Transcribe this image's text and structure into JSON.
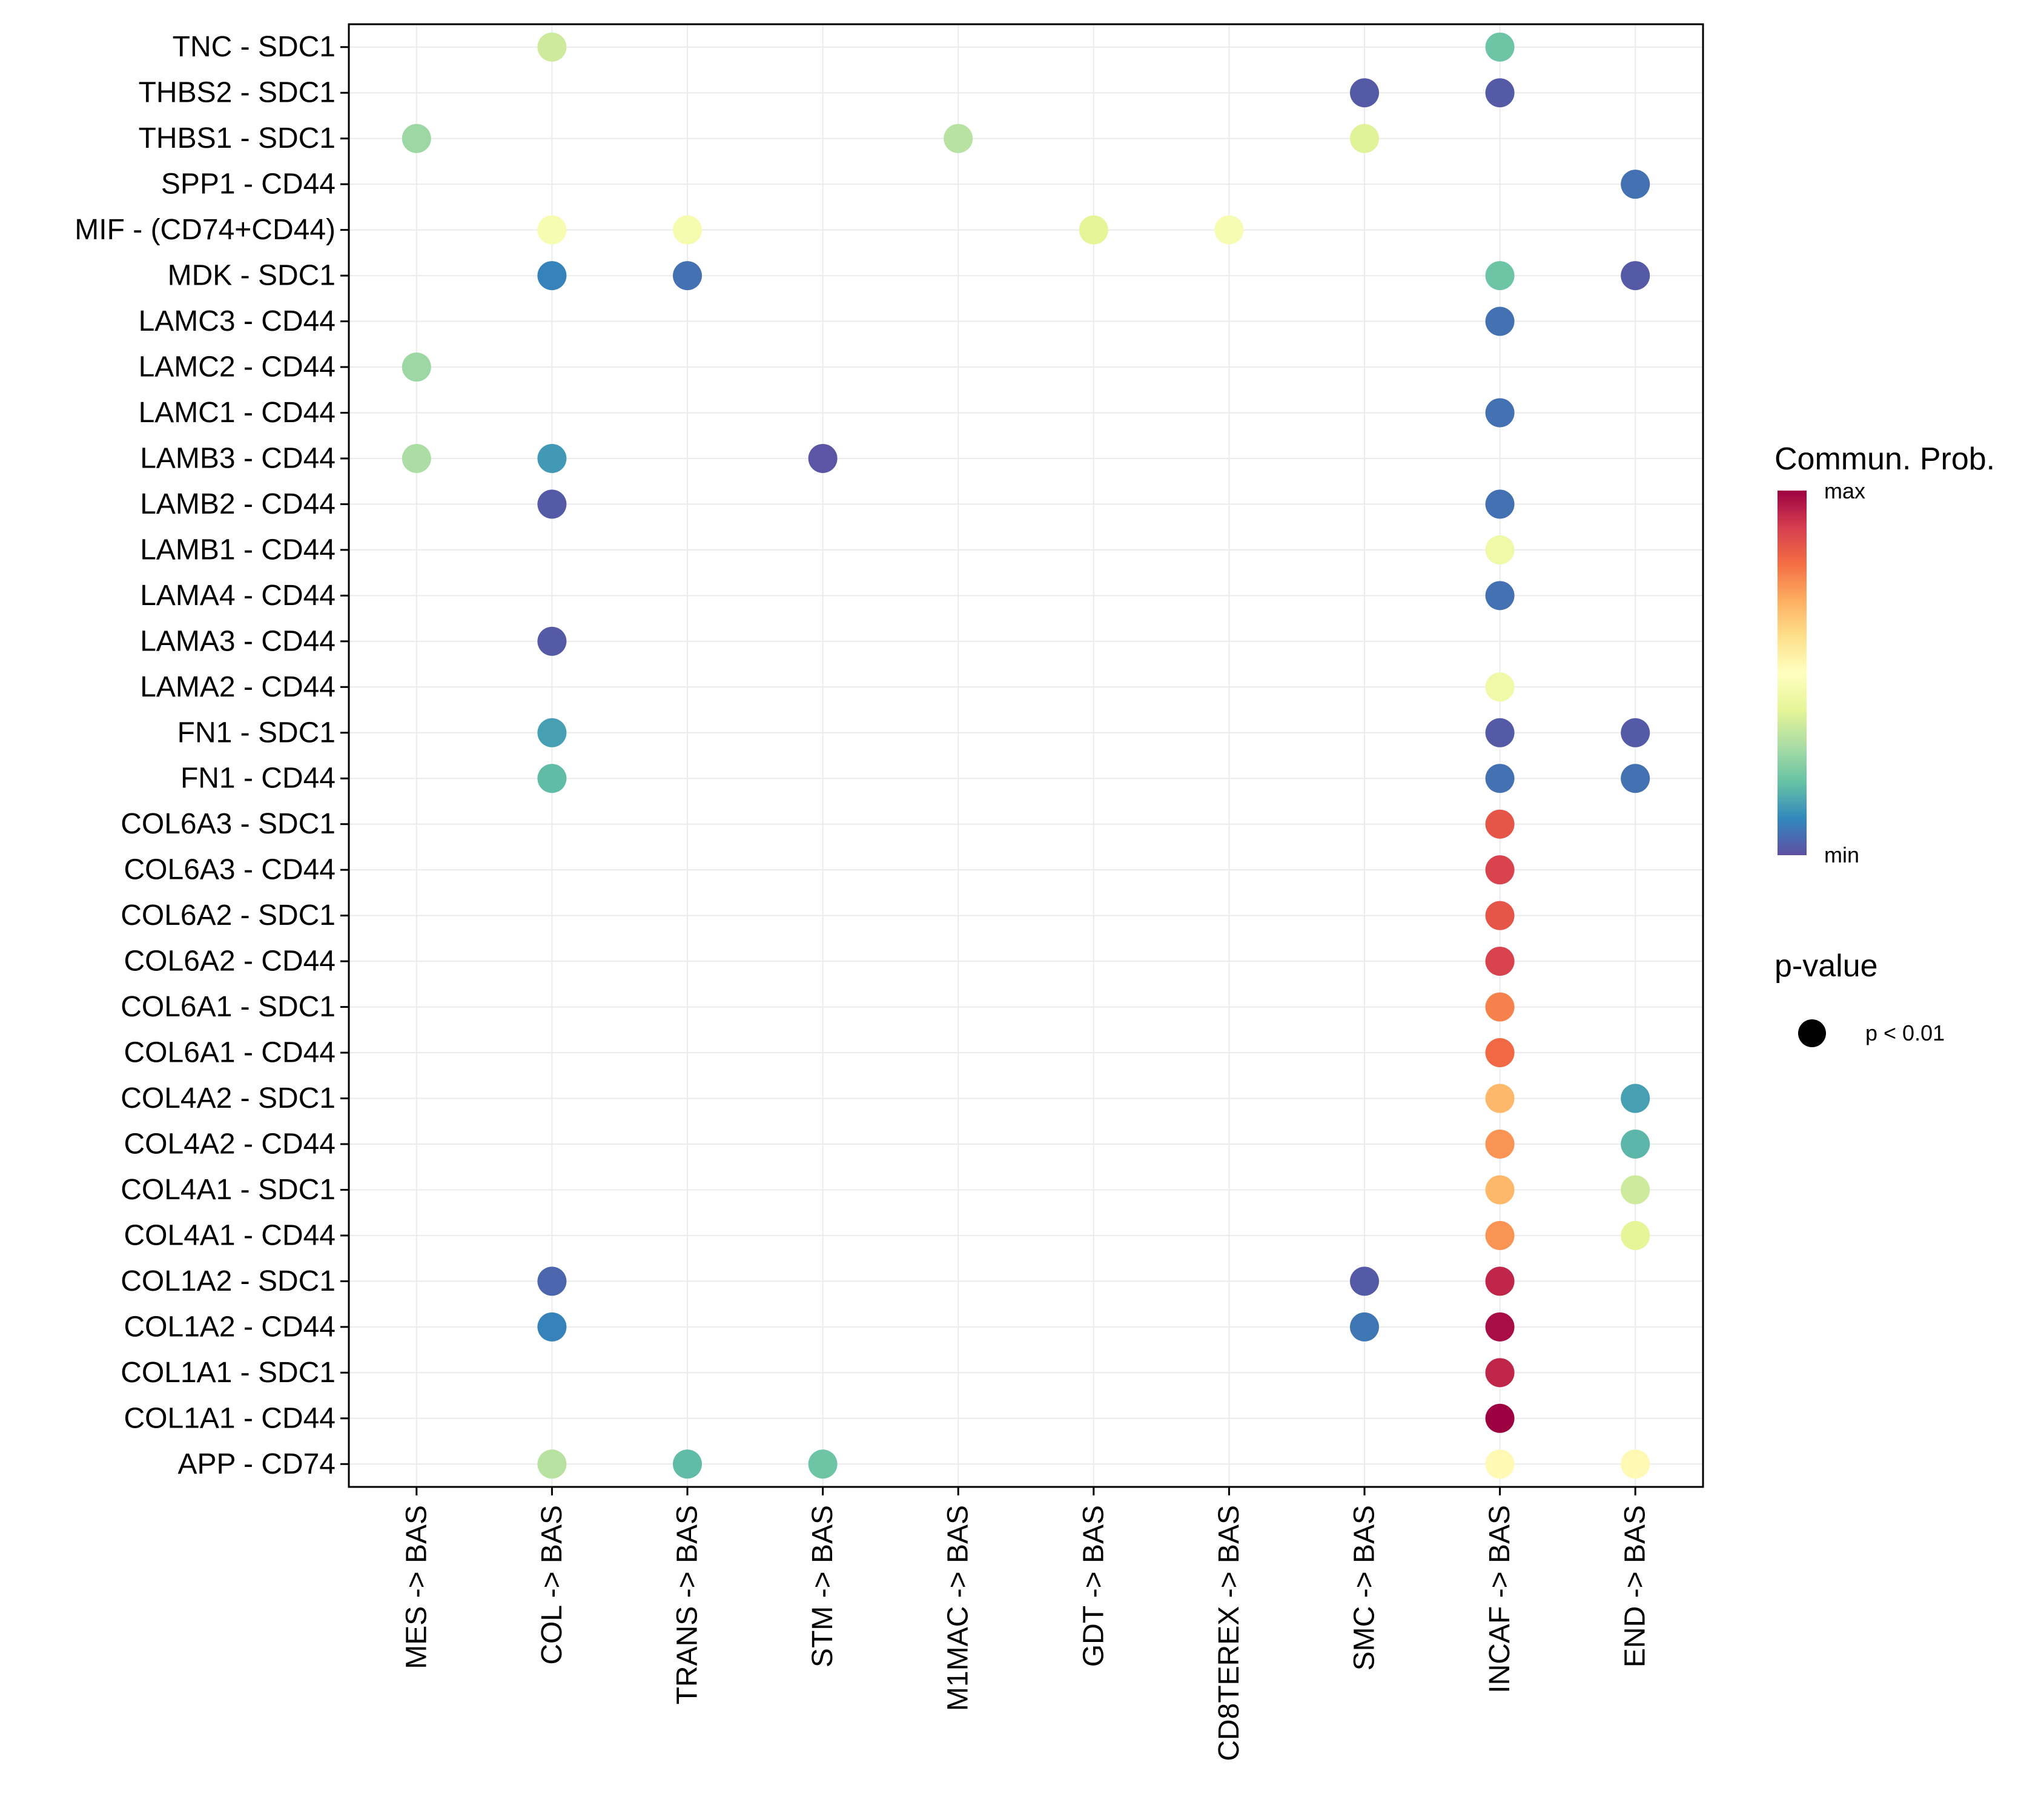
{
  "chart_data": {
    "type": "scatter",
    "subtype": "dot-plot",
    "x_categories": [
      "MES -> BAS",
      "COL -> BAS",
      "TRANS -> BAS",
      "STM -> BAS",
      "M1MAC -> BAS",
      "GDT -> BAS",
      "CD8TEREX -> BAS",
      "SMC -> BAS",
      "INCAF -> BAS",
      "END -> BAS"
    ],
    "y_categories": [
      "TNC - SDC1",
      "THBS2 - SDC1",
      "THBS1 - SDC1",
      "SPP1 - CD44",
      "MIF - (CD74+CD44)",
      "MDK - SDC1",
      "LAMC3 - CD44",
      "LAMC2 - CD44",
      "LAMC1 - CD44",
      "LAMB3 - CD44",
      "LAMB2 - CD44",
      "LAMB1 - CD44",
      "LAMA4 - CD44",
      "LAMA3 - CD44",
      "LAMA2 - CD44",
      "FN1 - SDC1",
      "FN1 - CD44",
      "COL6A3 - SDC1",
      "COL6A3 - CD44",
      "COL6A2 - SDC1",
      "COL6A2 - CD44",
      "COL6A1 - SDC1",
      "COL6A1 - CD44",
      "COL4A2 - SDC1",
      "COL4A2 - CD44",
      "COL4A1 - SDC1",
      "COL4A1 - CD44",
      "COL1A2 - SDC1",
      "COL1A2 - CD44",
      "COL1A1 - SDC1",
      "COL1A1 - CD44",
      "APP - CD74"
    ],
    "points": [
      {
        "y": "TNC - SDC1",
        "x": "COL -> BAS",
        "prob": 0.36
      },
      {
        "y": "TNC - SDC1",
        "x": "INCAF -> BAS",
        "prob": 0.21
      },
      {
        "y": "THBS2 - SDC1",
        "x": "SMC -> BAS",
        "prob": 0.02
      },
      {
        "y": "THBS2 - SDC1",
        "x": "INCAF -> BAS",
        "prob": 0.02
      },
      {
        "y": "THBS1 - SDC1",
        "x": "MES -> BAS",
        "prob": 0.28
      },
      {
        "y": "THBS1 - SDC1",
        "x": "M1MAC -> BAS",
        "prob": 0.32
      },
      {
        "y": "THBS1 - SDC1",
        "x": "SMC -> BAS",
        "prob": 0.39
      },
      {
        "y": "SPP1 - CD44",
        "x": "END -> BAS",
        "prob": 0.06
      },
      {
        "y": "MIF - (CD74+CD44)",
        "x": "COL -> BAS",
        "prob": 0.47
      },
      {
        "y": "MIF - (CD74+CD44)",
        "x": "TRANS -> BAS",
        "prob": 0.46
      },
      {
        "y": "MIF - (CD74+CD44)",
        "x": "GDT -> BAS",
        "prob": 0.4
      },
      {
        "y": "MIF - (CD74+CD44)",
        "x": "CD8TEREX -> BAS",
        "prob": 0.47
      },
      {
        "y": "MDK - SDC1",
        "x": "COL -> BAS",
        "prob": 0.09
      },
      {
        "y": "MDK - SDC1",
        "x": "TRANS -> BAS",
        "prob": 0.06
      },
      {
        "y": "MDK - SDC1",
        "x": "INCAF -> BAS",
        "prob": 0.21
      },
      {
        "y": "MDK - SDC1",
        "x": "END -> BAS",
        "prob": 0.02
      },
      {
        "y": "LAMC3 - CD44",
        "x": "INCAF -> BAS",
        "prob": 0.06
      },
      {
        "y": "LAMC2 - CD44",
        "x": "MES -> BAS",
        "prob": 0.28
      },
      {
        "y": "LAMC1 - CD44",
        "x": "INCAF -> BAS",
        "prob": 0.06
      },
      {
        "y": "LAMB3 - CD44",
        "x": "MES -> BAS",
        "prob": 0.3
      },
      {
        "y": "LAMB3 - CD44",
        "x": "COL -> BAS",
        "prob": 0.13
      },
      {
        "y": "LAMB3 - CD44",
        "x": "STM -> BAS",
        "prob": 0.01
      },
      {
        "y": "LAMB2 - CD44",
        "x": "COL -> BAS",
        "prob": 0.02
      },
      {
        "y": "LAMB2 - CD44",
        "x": "INCAF -> BAS",
        "prob": 0.06
      },
      {
        "y": "LAMB1 - CD44",
        "x": "INCAF -> BAS",
        "prob": 0.44
      },
      {
        "y": "LAMA4 - CD44",
        "x": "INCAF -> BAS",
        "prob": 0.06
      },
      {
        "y": "LAMA3 - CD44",
        "x": "COL -> BAS",
        "prob": 0.02
      },
      {
        "y": "LAMA2 - CD44",
        "x": "INCAF -> BAS",
        "prob": 0.44
      },
      {
        "y": "FN1 - SDC1",
        "x": "COL -> BAS",
        "prob": 0.14
      },
      {
        "y": "FN1 - SDC1",
        "x": "INCAF -> BAS",
        "prob": 0.02
      },
      {
        "y": "FN1 - SDC1",
        "x": "END -> BAS",
        "prob": 0.02
      },
      {
        "y": "FN1 - CD44",
        "x": "COL -> BAS",
        "prob": 0.19
      },
      {
        "y": "FN1 - CD44",
        "x": "INCAF -> BAS",
        "prob": 0.06
      },
      {
        "y": "FN1 - CD44",
        "x": "END -> BAS",
        "prob": 0.06
      },
      {
        "y": "COL6A3 - SDC1",
        "x": "INCAF -> BAS",
        "prob": 0.85
      },
      {
        "y": "COL6A3 - CD44",
        "x": "INCAF -> BAS",
        "prob": 0.89
      },
      {
        "y": "COL6A2 - SDC1",
        "x": "INCAF -> BAS",
        "prob": 0.85
      },
      {
        "y": "COL6A2 - CD44",
        "x": "INCAF -> BAS",
        "prob": 0.89
      },
      {
        "y": "COL6A1 - SDC1",
        "x": "INCAF -> BAS",
        "prob": 0.77
      },
      {
        "y": "COL6A1 - CD44",
        "x": "INCAF -> BAS",
        "prob": 0.81
      },
      {
        "y": "COL4A2 - SDC1",
        "x": "INCAF -> BAS",
        "prob": 0.68
      },
      {
        "y": "COL4A2 - SDC1",
        "x": "END -> BAS",
        "prob": 0.14
      },
      {
        "y": "COL4A2 - CD44",
        "x": "INCAF -> BAS",
        "prob": 0.74
      },
      {
        "y": "COL4A2 - CD44",
        "x": "END -> BAS",
        "prob": 0.18
      },
      {
        "y": "COL4A1 - SDC1",
        "x": "INCAF -> BAS",
        "prob": 0.68
      },
      {
        "y": "COL4A1 - SDC1",
        "x": "END -> BAS",
        "prob": 0.36
      },
      {
        "y": "COL4A1 - CD44",
        "x": "INCAF -> BAS",
        "prob": 0.74
      },
      {
        "y": "COL4A1 - CD44",
        "x": "END -> BAS",
        "prob": 0.4
      },
      {
        "y": "COL1A2 - SDC1",
        "x": "COL -> BAS",
        "prob": 0.04
      },
      {
        "y": "COL1A2 - SDC1",
        "x": "SMC -> BAS",
        "prob": 0.02
      },
      {
        "y": "COL1A2 - SDC1",
        "x": "INCAF -> BAS",
        "prob": 0.94
      },
      {
        "y": "COL1A2 - CD44",
        "x": "COL -> BAS",
        "prob": 0.09
      },
      {
        "y": "COL1A2 - CD44",
        "x": "SMC -> BAS",
        "prob": 0.07
      },
      {
        "y": "COL1A2 - CD44",
        "x": "INCAF -> BAS",
        "prob": 0.98
      },
      {
        "y": "COL1A1 - SDC1",
        "x": "INCAF -> BAS",
        "prob": 0.94
      },
      {
        "y": "COL1A1 - CD44",
        "x": "INCAF -> BAS",
        "prob": 1.0
      },
      {
        "y": "APP - CD74",
        "x": "COL -> BAS",
        "prob": 0.32
      },
      {
        "y": "APP - CD74",
        "x": "TRANS -> BAS",
        "prob": 0.19
      },
      {
        "y": "APP - CD74",
        "x": "STM -> BAS",
        "prob": 0.21
      },
      {
        "y": "APP - CD74",
        "x": "INCAF -> BAS",
        "prob": 0.52
      },
      {
        "y": "APP - CD74",
        "x": "END -> BAS",
        "prob": 0.52
      }
    ],
    "color_scale": {
      "name": "Spectral",
      "colors": [
        "#5E4FA2",
        "#3288BD",
        "#66C2A5",
        "#ABDDA4",
        "#E6F598",
        "#FFFFBF",
        "#FEE08B",
        "#FDAE61",
        "#F46D43",
        "#D53E4F",
        "#9E0142"
      ]
    },
    "legend": {
      "color_title": "Commun. Prob.",
      "color_max_label": "max",
      "color_min_label": "min",
      "size_title": "p-value",
      "size_label": "p < 0.01",
      "placement": "right"
    },
    "grid": true
  }
}
